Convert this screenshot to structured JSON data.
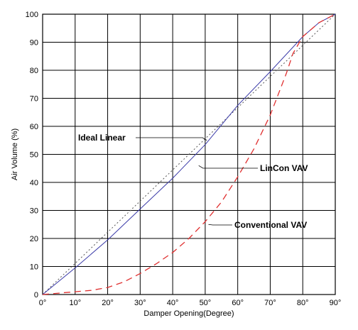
{
  "chart_data": {
    "type": "line",
    "xlabel": "Damper Opening(Degree)",
    "ylabel": "Air Volume (%)",
    "xlim": [
      0,
      90
    ],
    "ylim": [
      0,
      100
    ],
    "x_ticks": [
      0,
      10,
      20,
      30,
      40,
      50,
      60,
      70,
      80,
      90
    ],
    "x_tick_labels": [
      "0°",
      "10°",
      "20°",
      "30°",
      "40°",
      "50°",
      "60°",
      "70°",
      "80°",
      "90°"
    ],
    "y_ticks": [
      0,
      10,
      20,
      30,
      40,
      50,
      60,
      70,
      80,
      90,
      100
    ],
    "y_tick_labels": [
      "0",
      "10",
      "20",
      "30",
      "40",
      "50",
      "60",
      "70",
      "80",
      "90",
      "100"
    ],
    "grid": true,
    "series": [
      {
        "name": "Ideal Linear",
        "color": "#555555",
        "style": "dotted",
        "x": [
          0,
          90
        ],
        "y": [
          0,
          100
        ]
      },
      {
        "name": "LinCon VAV",
        "color": "#3a3aa8",
        "style": "solid",
        "x": [
          0,
          10,
          20,
          30,
          40,
          50,
          60,
          70,
          80,
          85,
          90
        ],
        "y": [
          0,
          9.5,
          19.5,
          30.5,
          41.5,
          53.5,
          67.5,
          79.5,
          92,
          97,
          100
        ]
      },
      {
        "name": "Conventional VAV",
        "color": "#e03030",
        "style": "dashed",
        "x": [
          0,
          10,
          15,
          20,
          25,
          30,
          35,
          40,
          45,
          50,
          55,
          60,
          65,
          70,
          72,
          75,
          77,
          80,
          85,
          90
        ],
        "y": [
          0,
          1,
          1.5,
          2.5,
          4.5,
          7.5,
          11,
          15,
          20,
          26,
          33,
          42,
          52,
          64,
          70,
          79,
          86,
          92,
          97,
          100
        ]
      }
    ],
    "annotations": [
      {
        "text": "Ideal Linear",
        "series": "Ideal Linear",
        "anchor_x": 50.5,
        "anchor_y": 55
      },
      {
        "text": "LinCon VAV",
        "series": "LinCon VAV",
        "anchor_x": 48,
        "anchor_y": 46
      },
      {
        "text": "Conventional VAV",
        "series": "Conventional VAV",
        "anchor_x": 51,
        "anchor_y": 25
      }
    ]
  }
}
